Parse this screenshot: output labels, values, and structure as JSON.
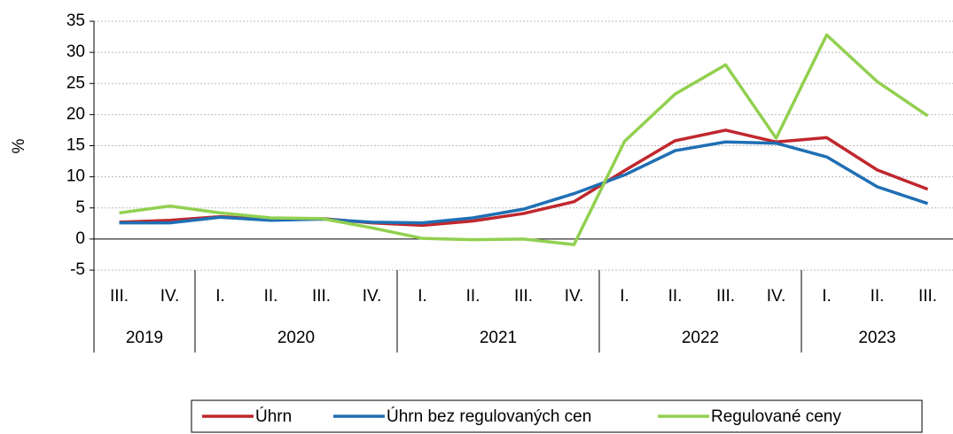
{
  "chart_data": {
    "type": "line",
    "ylabel": "%",
    "categories": [
      "III.",
      "IV.",
      "I.",
      "II.",
      "III.",
      "IV.",
      "I.",
      "II.",
      "III.",
      "IV.",
      "I.",
      "II.",
      "III.",
      "IV.",
      "I.",
      "II.",
      "III."
    ],
    "groups": [
      {
        "label": "2019",
        "count": 2
      },
      {
        "label": "2020",
        "count": 4
      },
      {
        "label": "2021",
        "count": 4
      },
      {
        "label": "2022",
        "count": 4
      },
      {
        "label": "2023",
        "count": 3
      }
    ],
    "series": [
      {
        "name": "Úhrn",
        "color": "#c0272d",
        "values": [
          2.7,
          3.0,
          3.6,
          3.1,
          3.3,
          2.6,
          2.2,
          2.9,
          4.1,
          6.0,
          11.0,
          15.8,
          17.5,
          15.6,
          16.3,
          11.1,
          8.0
        ]
      },
      {
        "name": "Úhrn bez regulovaných cen",
        "color": "#1f6fb4",
        "values": [
          2.6,
          2.6,
          3.5,
          3.0,
          3.2,
          2.7,
          2.6,
          3.4,
          4.8,
          7.3,
          10.3,
          14.2,
          15.6,
          15.4,
          13.2,
          8.4,
          5.7
        ]
      },
      {
        "name": "Regulované ceny",
        "color": "#92d050",
        "values": [
          4.2,
          5.3,
          4.2,
          3.4,
          3.3,
          1.8,
          0.1,
          -0.1,
          0.0,
          -0.9,
          15.7,
          23.3,
          28.0,
          16.2,
          32.8,
          25.3,
          19.8
        ]
      }
    ],
    "ylim": [
      -5,
      35
    ],
    "yticks": [
      -5,
      0,
      5,
      10,
      15,
      20,
      25,
      30,
      35
    ],
    "grid": true,
    "legend": "bottom"
  }
}
